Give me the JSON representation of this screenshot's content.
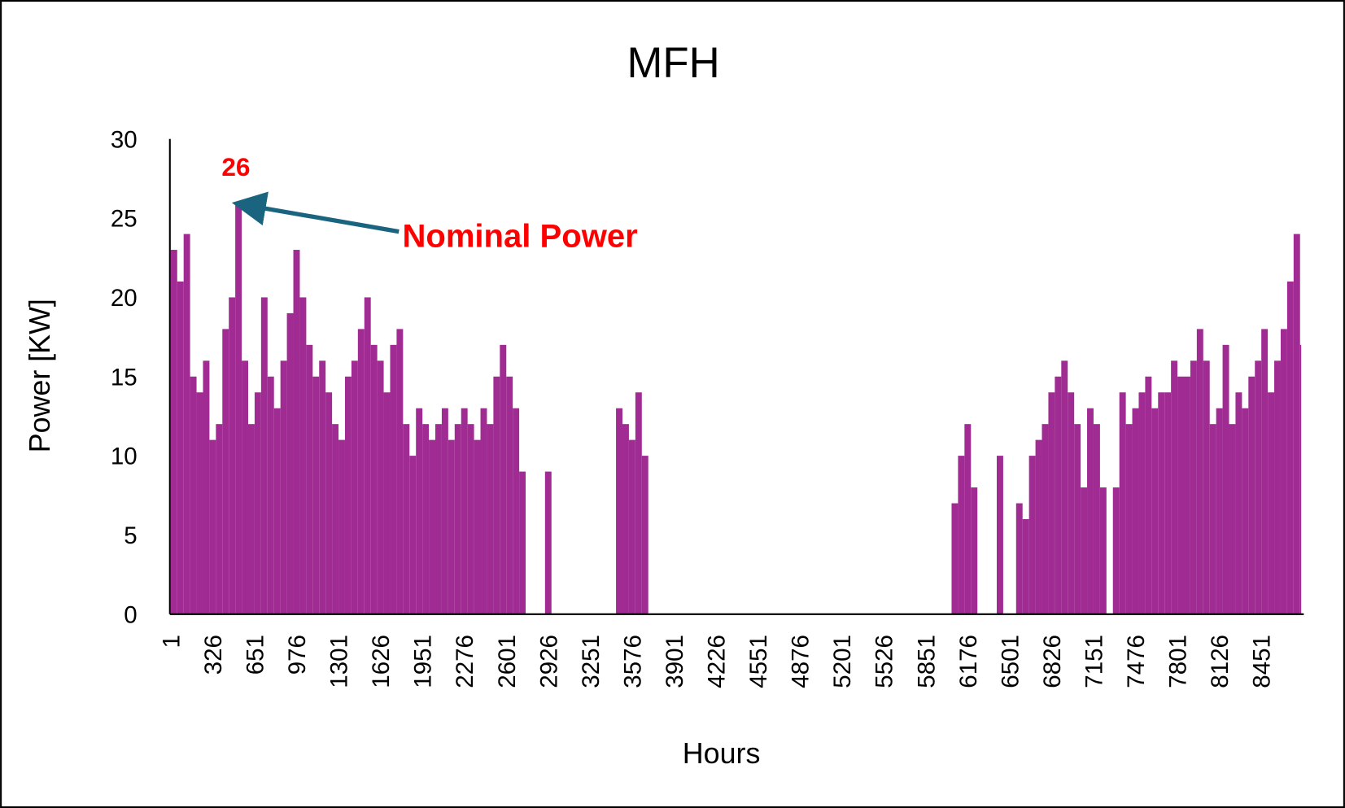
{
  "chart_data": {
    "type": "bar",
    "title": "MFH",
    "x_label": "Hours",
    "y_label": "Power [KW]",
    "x": [
      1,
      51,
      101,
      151,
      201,
      251,
      301,
      351,
      401,
      451,
      501,
      551,
      601,
      651,
      701,
      751,
      801,
      851,
      901,
      951,
      1001,
      1051,
      1101,
      1151,
      1201,
      1251,
      1301,
      1351,
      1401,
      1451,
      1501,
      1551,
      1601,
      1651,
      1701,
      1751,
      1801,
      1851,
      1901,
      1951,
      2001,
      2051,
      2101,
      2151,
      2201,
      2251,
      2301,
      2351,
      2401,
      2451,
      2501,
      2551,
      2601,
      2651,
      2701,
      2751,
      2801,
      2851,
      2901,
      2951,
      3001,
      3051,
      3101,
      3151,
      3201,
      3251,
      3301,
      3351,
      3401,
      3451,
      3501,
      3551,
      3601,
      3651,
      3701,
      3751,
      3801,
      3851,
      3901,
      3951,
      4001,
      4051,
      4101,
      4151,
      4201,
      4251,
      4301,
      4351,
      4401,
      4451,
      4501,
      4551,
      4601,
      4651,
      4701,
      4751,
      4801,
      4851,
      4901,
      4951,
      5001,
      5051,
      5101,
      5151,
      5201,
      5251,
      5301,
      5351,
      5401,
      5451,
      5501,
      5551,
      5601,
      5651,
      5701,
      5751,
      5801,
      5851,
      5901,
      5951,
      6001,
      6051,
      6101,
      6151,
      6201,
      6251,
      6301,
      6351,
      6401,
      6451,
      6501,
      6551,
      6601,
      6651,
      6701,
      6751,
      6801,
      6851,
      6901,
      6951,
      7001,
      7051,
      7101,
      7151,
      7201,
      7251,
      7301,
      7351,
      7401,
      7451,
      7501,
      7551,
      7601,
      7651,
      7701,
      7751,
      7801,
      7851,
      7901,
      7951,
      8001,
      8051,
      8101,
      8151,
      8201,
      8251,
      8301,
      8351,
      8401,
      8451,
      8501,
      8551,
      8601,
      8651,
      8701,
      8751
    ],
    "values": [
      23,
      21,
      24,
      15,
      14,
      16,
      11,
      12,
      18,
      20,
      26,
      16,
      12,
      14,
      20,
      15,
      13,
      16,
      19,
      23,
      20,
      17,
      15,
      16,
      14,
      12,
      11,
      15,
      16,
      18,
      20,
      17,
      16,
      14,
      17,
      18,
      12,
      10,
      13,
      12,
      11,
      12,
      13,
      11,
      12,
      13,
      12,
      11,
      13,
      12,
      15,
      17,
      15,
      13,
      9,
      0,
      0,
      0,
      9,
      0,
      0,
      0,
      0,
      0,
      0,
      0,
      0,
      0,
      0,
      13,
      12,
      11,
      14,
      10,
      0,
      0,
      0,
      0,
      0,
      0,
      0,
      0,
      0,
      0,
      0,
      0,
      0,
      0,
      0,
      0,
      0,
      0,
      0,
      0,
      0,
      0,
      0,
      0,
      0,
      0,
      0,
      0,
      0,
      0,
      0,
      0,
      0,
      0,
      0,
      0,
      0,
      0,
      0,
      0,
      0,
      0,
      0,
      0,
      0,
      0,
      0,
      7,
      10,
      12,
      8,
      0,
      0,
      0,
      10,
      0,
      0,
      7,
      6,
      10,
      11,
      12,
      14,
      15,
      16,
      14,
      12,
      8,
      13,
      12,
      8,
      0,
      8,
      14,
      12,
      13,
      14,
      15,
      13,
      14,
      14,
      16,
      15,
      15,
      16,
      18,
      16,
      12,
      13,
      17,
      12,
      14,
      13,
      15,
      16,
      18,
      14,
      16,
      18,
      21,
      24,
      17
    ],
    "color": "#a02b93",
    "xlim": [
      1,
      8760
    ],
    "xticks": [
      1,
      326,
      651,
      976,
      1301,
      1626,
      1951,
      2276,
      2601,
      2926,
      3251,
      3576,
      3901,
      4226,
      4551,
      4876,
      5201,
      5526,
      5851,
      6176,
      6501,
      6826,
      7151,
      7476,
      7801,
      8126,
      8451
    ],
    "ylim": [
      0,
      30
    ],
    "yticks": [
      0,
      5,
      10,
      15,
      20,
      25,
      30
    ],
    "annotations": [
      {
        "text": "26"
      },
      {
        "text": "Nominal Power"
      }
    ]
  }
}
